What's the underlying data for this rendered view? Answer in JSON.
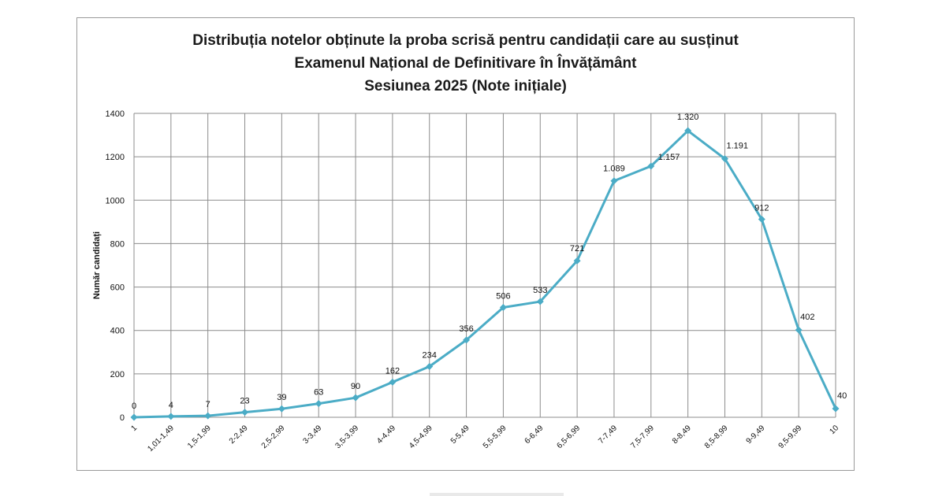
{
  "chart_data": {
    "type": "line",
    "title_lines": [
      "Distribuția notelor obținute la proba scrisă pentru candidații care au susținut",
      "Examenul Național de Definitivare în Învățământ",
      "Sesiunea 2025 (Note inițiale)"
    ],
    "xlabel": "",
    "ylabel": "Număr candidați",
    "ylim": [
      0,
      1400
    ],
    "yticks": [
      0,
      200,
      400,
      600,
      800,
      1000,
      1200,
      1400
    ],
    "categories": [
      "1",
      "1,01-1,49",
      "1,5-1,99",
      "2-2,49",
      "2,5-2,99",
      "3-3,49",
      "3,5-3,99",
      "4-4,49",
      "4,5-4,99",
      "5-5,49",
      "5,5-5,99",
      "6-6,49",
      "6,5-6,99",
      "7-7,49",
      "7,5-7,99",
      "8-8,49",
      "8,5-8,99",
      "9-9,49",
      "9,5-9,99",
      "10"
    ],
    "series": [
      {
        "values": [
          0,
          4,
          7,
          23,
          39,
          63,
          90,
          162,
          234,
          356,
          506,
          533,
          721,
          1089,
          1157,
          1320,
          1191,
          912,
          402,
          40
        ],
        "labels": [
          "0",
          "4",
          "7",
          "23",
          "39",
          "63",
          "90",
          "162",
          "234",
          "356",
          "506",
          "533",
          "721",
          "1.089",
          "1.157",
          "1.320",
          "1.191",
          "912",
          "402",
          "40"
        ],
        "color": "#4bacc6"
      }
    ],
    "grid": true,
    "legend": "none",
    "gridColor": "#8c8c8c"
  }
}
